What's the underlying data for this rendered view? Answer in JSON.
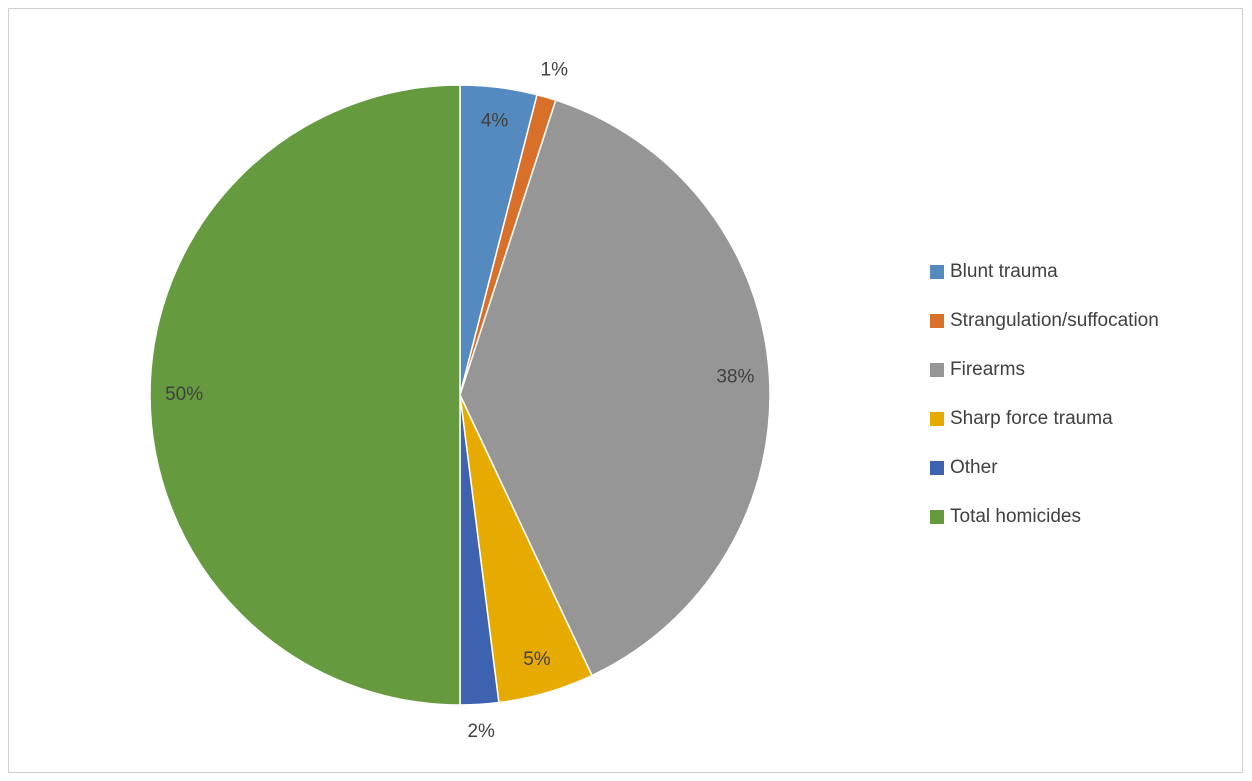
{
  "chart_data": {
    "type": "pie",
    "categories": [
      "Blunt trauma",
      "Strangulation/suffocation",
      "Firearms",
      "Sharp force trauma",
      "Other",
      "Total homicides"
    ],
    "values": [
      4,
      1,
      38,
      5,
      2,
      50
    ],
    "value_labels": [
      "4%",
      "1%",
      "38%",
      "5%",
      "2%",
      "50%"
    ],
    "colors": [
      "#558ac0",
      "#d9702a",
      "#969696",
      "#e6aa00",
      "#3d62b0",
      "#659a3e"
    ],
    "legend": "right"
  }
}
